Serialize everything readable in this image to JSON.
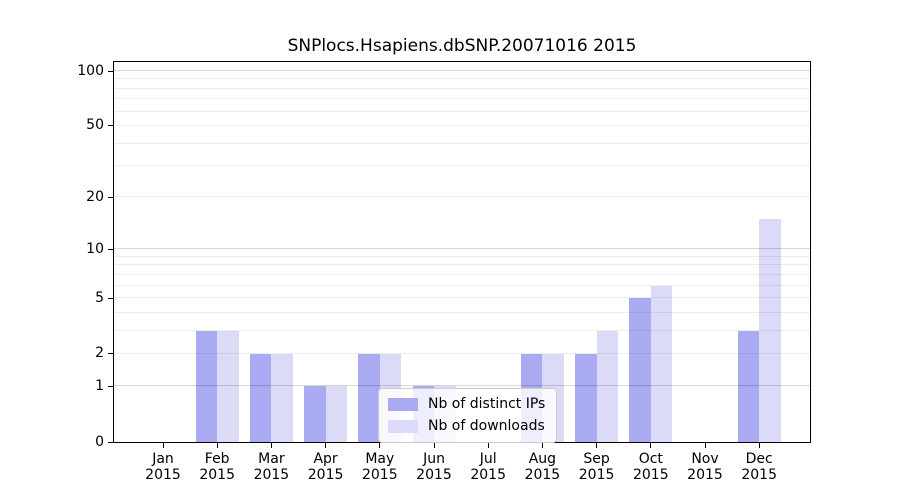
{
  "chart_data": {
    "type": "bar",
    "title": "SNPlocs.Hsapiens.dbSNP.20071016 2015",
    "categories": [
      "Jan",
      "Feb",
      "Mar",
      "Apr",
      "May",
      "Jun",
      "Jul",
      "Aug",
      "Sep",
      "Oct",
      "Nov",
      "Dec"
    ],
    "x_year_label": "2015",
    "series": [
      {
        "name": "Nb of distinct IPs",
        "color": "#aaaaf2",
        "values": [
          0,
          3,
          2,
          1,
          2,
          1,
          0,
          2,
          2,
          5,
          0,
          3
        ]
      },
      {
        "name": "Nb of downloads",
        "color": "#dbdbf8",
        "values": [
          0,
          3,
          2,
          1,
          2,
          1,
          0,
          2,
          3,
          6,
          0,
          15
        ]
      }
    ],
    "y_axis": {
      "scale": "log1p",
      "ticks": [
        0,
        1,
        2,
        5,
        10,
        20,
        50,
        100
      ],
      "major_gridlines": [
        1,
        10,
        100
      ],
      "minor_gridlines": [
        2,
        3,
        4,
        5,
        6,
        7,
        8,
        9,
        20,
        30,
        40,
        50,
        60,
        70,
        80,
        90
      ],
      "ylim": [
        0,
        112
      ]
    },
    "legend": {
      "position": "lower-center"
    },
    "grid": true,
    "colors": {
      "background": "#ffffff",
      "axis": "#000000",
      "major_grid": "rgba(0,0,0,0.16)",
      "minor_grid": "rgba(0,0,0,0.07)"
    }
  }
}
